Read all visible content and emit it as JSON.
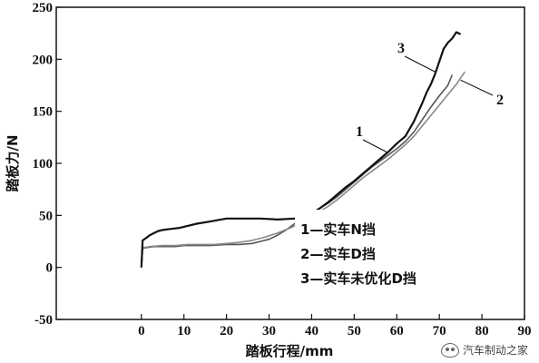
{
  "chart_data": {
    "type": "line",
    "title": "",
    "xlabel": "踏板行程/mm",
    "ylabel": "踏板力/N",
    "xlim": [
      -20,
      90
    ],
    "ylim": [
      -50,
      250
    ],
    "xticks": [
      0,
      10,
      20,
      30,
      40,
      50,
      60,
      70,
      80,
      90
    ],
    "yticks": [
      -50,
      0,
      50,
      100,
      150,
      200,
      250
    ],
    "grid": false,
    "legend_position": "bottom-right inside",
    "legend": [
      "1—实车N挡",
      "2—实车D挡",
      "3—实车未优化D挡"
    ],
    "callouts": [
      "1",
      "2",
      "3"
    ],
    "series": [
      {
        "label": "1",
        "color": "#555555",
        "x": [
          0,
          0.3,
          1,
          3,
          5,
          8,
          10,
          13,
          16,
          20,
          23,
          26,
          28,
          30,
          32,
          34,
          36,
          38,
          40,
          42,
          44,
          46,
          48,
          50,
          52,
          54,
          56,
          58,
          60,
          62,
          64,
          66,
          68,
          70,
          72,
          73
        ],
        "y": [
          0,
          18,
          19,
          20,
          20,
          20,
          21,
          21,
          21,
          22,
          22,
          23,
          25,
          27,
          31,
          36,
          42,
          47,
          52,
          57,
          62,
          68,
          75,
          82,
          89,
          96,
          102,
          108,
          114,
          121,
          130,
          142,
          154,
          165,
          175,
          185
        ]
      },
      {
        "label": "2",
        "color": "#888888",
        "x": [
          0,
          0.3,
          2,
          5,
          8,
          11,
          14,
          17,
          20,
          23,
          26,
          29,
          32,
          35,
          38,
          40,
          42,
          44,
          46,
          48,
          50,
          52,
          54,
          56,
          58,
          60,
          62,
          64,
          66,
          68,
          70,
          72,
          74,
          76
        ],
        "y": [
          0,
          19,
          20,
          21,
          21,
          22,
          22,
          22,
          23,
          24,
          26,
          29,
          33,
          38,
          44,
          49,
          54,
          59,
          65,
          72,
          79,
          86,
          92,
          98,
          104,
          111,
          118,
          126,
          136,
          146,
          156,
          166,
          176,
          188
        ]
      },
      {
        "label": "3",
        "color": "#111111",
        "x": [
          0,
          0.3,
          1,
          2,
          3,
          4,
          5,
          7,
          9,
          11,
          13,
          16,
          20,
          24,
          28,
          32,
          36,
          38,
          40,
          42,
          44,
          46,
          48,
          50,
          52,
          54,
          56,
          58,
          60,
          62,
          64,
          66,
          67,
          68,
          69,
          70,
          71,
          72,
          73,
          74,
          75
        ],
        "y": [
          0,
          26,
          28,
          31,
          33,
          35,
          36,
          37,
          38,
          40,
          42,
          44,
          47,
          47,
          47,
          46,
          47,
          49,
          52,
          57,
          63,
          70,
          77,
          83,
          90,
          97,
          104,
          111,
          119,
          126,
          140,
          158,
          168,
          176,
          186,
          198,
          210,
          216,
          220,
          226,
          224
        ]
      }
    ]
  },
  "watermark": {
    "icon": "wechat-icon",
    "text": "汽车制动之家"
  }
}
